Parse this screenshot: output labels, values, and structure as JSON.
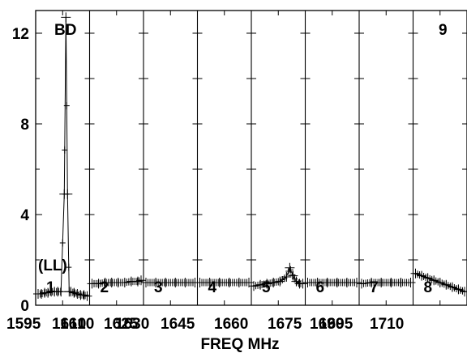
{
  "chart_data": {
    "type": "line",
    "title": "",
    "xlabel": "FREQ MHz",
    "ylabel": "",
    "ylim": [
      0,
      13
    ],
    "y_ticks": [
      0,
      4,
      8,
      12
    ],
    "grid": false,
    "labels": {
      "corner_left": "BD",
      "corner_right": "9",
      "polarization": "(LL)"
    },
    "x_tick_labels": [
      "1595",
      "1610",
      "1610",
      "1625",
      "1630",
      "1645",
      "1660",
      "1675",
      "1690",
      "1695",
      "1710"
    ],
    "panels": [
      {
        "name": "1",
        "x": [
          1595.0,
          1596.0,
          1597.0,
          1598.0,
          1599.0,
          1600.0,
          1601.0,
          1602.0,
          1603.0,
          1603.5,
          1604.0,
          1604.5,
          1605.0,
          1606.0,
          1607.0,
          1608.0,
          1609.0,
          1610.0
        ],
        "y": [
          0.5,
          0.5,
          0.55,
          0.55,
          0.6,
          0.6,
          0.6,
          0.6,
          4.9,
          12.7,
          4.9,
          0.6,
          0.6,
          0.55,
          0.5,
          0.45,
          0.45,
          0.4
        ]
      },
      {
        "name": "2",
        "x": [
          1610.0,
          1612.0,
          1614.0,
          1616.0,
          1618.0,
          1620.0,
          1622.0,
          1624.0,
          1625.0
        ],
        "y": [
          0.95,
          0.95,
          1.0,
          1.0,
          1.0,
          1.0,
          1.05,
          1.05,
          1.1
        ]
      },
      {
        "name": "3",
        "x": [
          1625.0,
          1628.0,
          1631.0,
          1634.0,
          1637.0,
          1640.0
        ],
        "y": [
          1.0,
          1.0,
          1.0,
          1.0,
          1.0,
          1.0
        ]
      },
      {
        "name": "4",
        "x": [
          1640.0,
          1643.0,
          1646.0,
          1649.0,
          1652.0,
          1655.0
        ],
        "y": [
          1.0,
          1.0,
          1.0,
          1.0,
          1.0,
          1.0
        ]
      },
      {
        "name": "5",
        "x": [
          1655.0,
          1657.0,
          1659.0,
          1661.0,
          1663.0,
          1665.0,
          1666.0,
          1667.0,
          1668.0,
          1669.0,
          1670.0
        ],
        "y": [
          0.85,
          0.9,
          0.95,
          1.0,
          1.05,
          1.25,
          1.65,
          1.3,
          1.05,
          0.95,
          0.95
        ]
      },
      {
        "name": "6",
        "x": [
          1670.0,
          1673.0,
          1676.0,
          1679.0,
          1682.0,
          1685.0
        ],
        "y": [
          1.0,
          1.0,
          1.0,
          1.0,
          1.0,
          1.0
        ]
      },
      {
        "name": "7",
        "x": [
          1685.0,
          1688.0,
          1691.0,
          1694.0,
          1697.0,
          1700.0
        ],
        "y": [
          0.95,
          1.0,
          1.0,
          1.0,
          1.0,
          1.0
        ]
      },
      {
        "name": "8",
        "x": [
          1700.0,
          1702.0,
          1704.0,
          1706.0,
          1708.0,
          1710.0,
          1712.0,
          1714.0,
          1716.0
        ],
        "y": [
          1.4,
          1.3,
          1.2,
          1.1,
          1.0,
          0.9,
          0.8,
          0.7,
          0.6
        ]
      }
    ]
  }
}
